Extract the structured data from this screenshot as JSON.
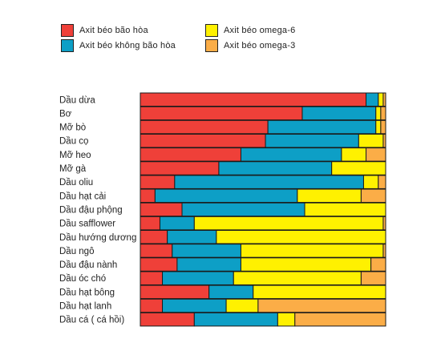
{
  "colors": {
    "saturated": "#ef4039",
    "unsaturated": "#0d9fc6",
    "omega6": "#fff100",
    "omega3": "#fbad47"
  },
  "legend": [
    {
      "label": "Axit béo bão hòa",
      "color": "#ef4039"
    },
    {
      "label": "Axit béo omega-6",
      "color": "#fff100"
    },
    {
      "label": "Axit béo không bão hòa",
      "color": "#0d9fc6"
    },
    {
      "label": "Axit béo omega-3",
      "color": "#fbad47"
    }
  ],
  "chart_data": {
    "type": "bar",
    "orientation": "horizontal",
    "stacked": true,
    "normalized": true,
    "categories": [
      "Dầu dừa",
      "Bơ",
      "Mỡ bò",
      "Dầu cọ",
      "Mỡ heo",
      "Mỡ gà",
      "Dầu oliu",
      "Dầu hạt cải",
      "Dầu đậu phộng",
      "Dầu safflower",
      "Dầu hướng dương",
      "Dầu ngô",
      "Dầu đậu nành",
      "Dầu óc chó",
      "Dầu hạt bông",
      "Dầu hạt lanh",
      "Dầu cá ( cá hồi)"
    ],
    "series": [
      {
        "name": "Axit béo bão hòa",
        "values": [
          92,
          66,
          52,
          51,
          41,
          32,
          14,
          6,
          17,
          8,
          11,
          13,
          15,
          9,
          28,
          9,
          22
        ]
      },
      {
        "name": "Axit béo không bão hòa",
        "values": [
          5,
          30,
          44,
          38,
          41,
          46,
          77,
          58,
          50,
          14,
          20,
          28,
          26,
          29,
          18,
          26,
          34
        ]
      },
      {
        "name": "Axit béo omega-6",
        "values": [
          2,
          2,
          2,
          10,
          10,
          22,
          6,
          26,
          33,
          77,
          69,
          58,
          53,
          52,
          54,
          13,
          7
        ]
      },
      {
        "name": "Axit béo omega-3",
        "values": [
          1,
          2,
          2,
          1,
          8,
          0,
          3,
          10,
          0,
          1,
          0,
          1,
          6,
          10,
          0,
          52,
          37
        ]
      }
    ]
  }
}
